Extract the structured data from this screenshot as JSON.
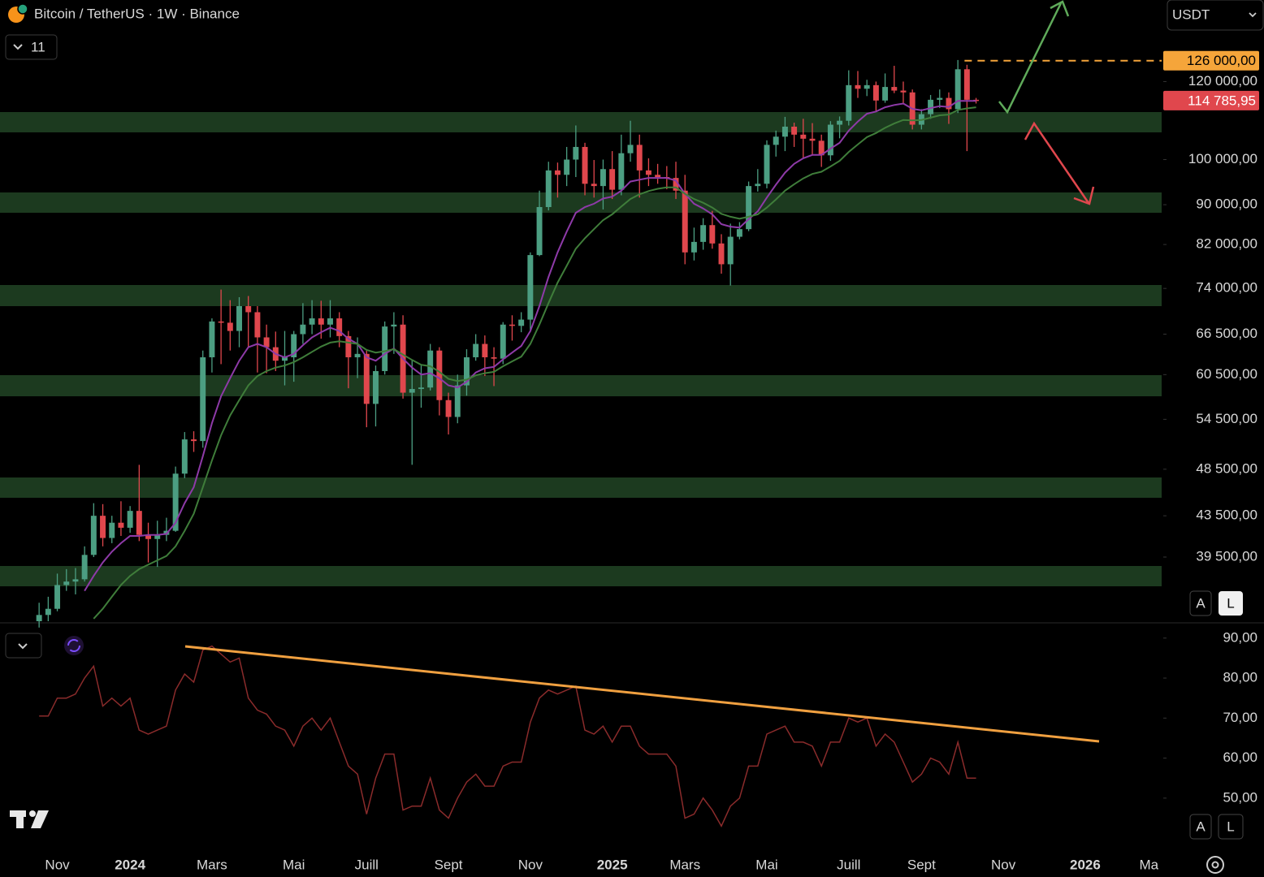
{
  "header": {
    "title": "Bitcoin / TetherUS · 1W · Binance",
    "indicator_count": "11",
    "currency": "USDT",
    "scale_buttons": [
      "A",
      "L"
    ]
  },
  "chart_data": [
    {
      "type": "candlestick",
      "log_scale": true,
      "up_color": "#4c9e82",
      "down_color": "#e0474d",
      "ylim": [
        34000,
        145200
      ],
      "yticks": [
        {
          "value": 120000,
          "label": "120 000,00"
        },
        {
          "value": 100000,
          "label": "100 000,00"
        },
        {
          "value": 90000,
          "label": "90 000,00"
        },
        {
          "value": 82000,
          "label": "82 000,00"
        },
        {
          "value": 74000,
          "label": "74 000,00"
        },
        {
          "value": 66500,
          "label": "66 500,00"
        },
        {
          "value": 60500,
          "label": "60 500,00"
        },
        {
          "value": 54500,
          "label": "54 500,00"
        },
        {
          "value": 48500,
          "label": "48 500,00"
        },
        {
          "value": 43500,
          "label": "43 500,00"
        },
        {
          "value": 39500,
          "label": "39 500,00"
        }
      ],
      "xlim": [
        -4.3,
        123.4
      ],
      "xticks": [
        {
          "value": 2,
          "label": "Nov"
        },
        {
          "value": 10,
          "label": "2024"
        },
        {
          "value": 19,
          "label": "Mars"
        },
        {
          "value": 28,
          "label": "Mai"
        },
        {
          "value": 36,
          "label": "Juill"
        },
        {
          "value": 45,
          "label": "Sept"
        },
        {
          "value": 54,
          "label": "Nov"
        },
        {
          "value": 63,
          "label": "2025"
        },
        {
          "value": 71,
          "label": "Mars"
        },
        {
          "value": 80,
          "label": "Mai"
        },
        {
          "value": 89,
          "label": "Juill"
        },
        {
          "value": 97,
          "label": "Sept"
        },
        {
          "value": 106,
          "label": "Nov"
        },
        {
          "value": 115,
          "label": "2026"
        },
        {
          "value": 122,
          "label": "Ma"
        }
      ],
      "price_lines": [
        {
          "value": 126000,
          "label": "126 000,00",
          "color": "#f5a53a",
          "dashed": true
        },
        {
          "value": 114785.95,
          "label": "114 785,95",
          "color": "#e0474d",
          "dashed": false
        }
      ],
      "open": [
        34000,
        34500,
        35000,
        37000,
        37300,
        37500,
        39700,
        43500,
        41300,
        42800,
        42300,
        44000,
        41600,
        41200,
        41600,
        42000,
        48000,
        52000,
        51800,
        63000,
        68500,
        68300,
        67000,
        71000,
        70000,
        66000,
        64500,
        62500,
        63000,
        66500,
        68000,
        69000,
        68000,
        69000,
        66200,
        63000,
        63500,
        56500,
        61000,
        67700,
        68000,
        58000,
        58500,
        58700,
        64000,
        57000,
        54800,
        59000,
        63000,
        65000,
        63000,
        62800,
        68000,
        67800,
        68800,
        80000,
        89500,
        97500,
        96500,
        100000,
        103000,
        94500,
        94000,
        97800,
        93200,
        101500,
        103500,
        97500,
        96500,
        96000,
        95800,
        93000,
        80500,
        82500,
        85800,
        82200,
        78300,
        83500,
        85000,
        94000,
        94500,
        103500,
        105500,
        108000,
        106000,
        105000,
        104500,
        101000,
        108500,
        109500,
        119000,
        118000,
        119000,
        114800,
        118500,
        117500,
        117000,
        108500,
        111200,
        115000,
        115500,
        112500,
        123500,
        115000
      ],
      "high": [
        35500,
        36000,
        38000,
        38400,
        38500,
        40500,
        44800,
        44700,
        43500,
        45000,
        44500,
        49000,
        42800,
        43000,
        43300,
        48800,
        52900,
        53000,
        64000,
        69000,
        73800,
        72000,
        72500,
        72700,
        71000,
        68000,
        66900,
        67000,
        67000,
        71500,
        72000,
        71900,
        72000,
        70000,
        67000,
        66000,
        64000,
        61800,
        68500,
        70000,
        69500,
        62700,
        61800,
        65000,
        64500,
        58000,
        60500,
        64200,
        66500,
        66300,
        64500,
        68400,
        69500,
        70000,
        80500,
        93000,
        99500,
        99300,
        103000,
        108300,
        104000,
        99900,
        100000,
        102000,
        106000,
        109500,
        106000,
        100300,
        99000,
        98500,
        99500,
        96500,
        85300,
        87200,
        88700,
        84000,
        86100,
        86400,
        95000,
        97800,
        104600,
        107000,
        110500,
        109000,
        110000,
        108900,
        106000,
        109400,
        110600,
        123200,
        123000,
        120500,
        120000,
        122300,
        124500,
        120000,
        117800,
        112500,
        116300,
        117800,
        117000,
        126200,
        124800,
        115500
      ],
      "low": [
        33500,
        34000,
        34800,
        36500,
        36200,
        37300,
        39500,
        40500,
        40800,
        41500,
        41800,
        41000,
        39000,
        38600,
        41000,
        41900,
        47500,
        50500,
        51000,
        60800,
        62000,
        64000,
        64500,
        64500,
        60800,
        60700,
        61000,
        59000,
        59500,
        65000,
        66500,
        65800,
        66000,
        64500,
        58600,
        60000,
        53500,
        53600,
        60500,
        63500,
        57200,
        49000,
        56000,
        58300,
        55000,
        52600,
        54000,
        57600,
        62500,
        60300,
        58900,
        62000,
        65500,
        66800,
        66800,
        79800,
        88800,
        91500,
        94000,
        96000,
        92000,
        91500,
        89000,
        91200,
        92000,
        99500,
        91500,
        94000,
        94500,
        93300,
        91200,
        78300,
        79000,
        81000,
        81200,
        76600,
        74500,
        83000,
        84600,
        92800,
        93500,
        100700,
        102000,
        103000,
        100400,
        101000,
        98300,
        99700,
        105100,
        108300,
        115500,
        116000,
        112000,
        114200,
        116800,
        114000,
        107300,
        107300,
        110000,
        112800,
        108700,
        111500,
        102000,
        114000
      ],
      "close": [
        34500,
        35000,
        37000,
        37300,
        37500,
        39700,
        43500,
        41300,
        42800,
        42300,
        44000,
        41600,
        41200,
        41600,
        42000,
        48000,
        52000,
        51800,
        63000,
        68500,
        68300,
        67000,
        71000,
        70000,
        66000,
        64500,
        62500,
        63000,
        66500,
        68000,
        69000,
        68000,
        69000,
        66200,
        63000,
        63500,
        56500,
        61000,
        67700,
        68000,
        58000,
        58500,
        58700,
        64000,
        57000,
        54800,
        59000,
        63000,
        65000,
        63000,
        62800,
        68000,
        67800,
        68800,
        80000,
        89500,
        97500,
        96500,
        100000,
        103000,
        94500,
        94000,
        97800,
        93200,
        101500,
        103500,
        97500,
        96500,
        96000,
        95800,
        93000,
        80500,
        82500,
        85800,
        82200,
        78300,
        83500,
        85000,
        94000,
        94500,
        103500,
        105500,
        108000,
        106000,
        105000,
        104500,
        101000,
        108500,
        109500,
        119000,
        118000,
        119000,
        114800,
        118500,
        117500,
        117000,
        108500,
        111200,
        115000,
        115500,
        112500,
        123500,
        115000,
        114785.95
      ],
      "series": [
        {
          "color": "#8e3aa8",
          "values": [
            null,
            null,
            null,
            null,
            null,
            36500,
            37800,
            39000,
            40000,
            40800,
            41500,
            41500,
            41600,
            41600,
            41700,
            42800,
            44800,
            46500,
            50000,
            54000,
            57500,
            60000,
            62500,
            64500,
            65000,
            64500,
            63500,
            63000,
            63500,
            64800,
            66000,
            66800,
            67500,
            67000,
            65800,
            65000,
            63000,
            62500,
            63500,
            64300,
            62800,
            61500,
            60500,
            60700,
            60000,
            59000,
            58700,
            59500,
            60800,
            61400,
            61600,
            62700,
            63700,
            64700,
            67000,
            71000,
            76000,
            80500,
            84500,
            88300,
            89500,
            90200,
            91300,
            91700,
            93000,
            95000,
            95400,
            95800,
            95800,
            95800,
            95200,
            92300,
            90200,
            89200,
            88000,
            86000,
            85500,
            85300,
            87000,
            88600,
            91500,
            94300,
            97000,
            99000,
            100300,
            101100,
            101100,
            102600,
            104000,
            107000,
            109300,
            111300,
            111900,
            113000,
            113600,
            114000,
            112600,
            112200,
            112800,
            113300,
            113100,
            114700,
            114700,
            114700
          ]
        },
        {
          "color": "#3f7d3a",
          "values": [
            null,
            null,
            null,
            null,
            null,
            null,
            34200,
            35000,
            36000,
            37000,
            37800,
            38400,
            38800,
            39200,
            39600,
            40500,
            42000,
            43700,
            46500,
            49500,
            52500,
            55000,
            57000,
            59000,
            60300,
            61000,
            61500,
            61800,
            62300,
            63000,
            63800,
            64600,
            65200,
            65400,
            65200,
            65000,
            64100,
            63700,
            63900,
            64200,
            63400,
            62600,
            61900,
            61700,
            60900,
            59900,
            59600,
            59800,
            60400,
            60700,
            60900,
            61700,
            62400,
            63100,
            65000,
            68000,
            71500,
            75000,
            78000,
            81200,
            83200,
            85000,
            86800,
            88000,
            89600,
            91200,
            92200,
            92900,
            93400,
            93700,
            93700,
            92300,
            91200,
            90400,
            89400,
            88100,
            87500,
            87100,
            87500,
            88000,
            89400,
            91100,
            93000,
            94400,
            95700,
            96700,
            97200,
            98400,
            99700,
            101800,
            103600,
            105400,
            106400,
            107700,
            108800,
            109700,
            109600,
            109700,
            110300,
            110900,
            111100,
            112300,
            112700,
            113000
          ]
        }
      ]
    },
    {
      "type": "line",
      "ylim": [
        38.4,
        93.2
      ],
      "xlim": [
        -4.3,
        123.4
      ],
      "yticks": [
        {
          "value": 90,
          "label": "90,00"
        },
        {
          "value": 80,
          "label": "80,00"
        },
        {
          "value": 70,
          "label": "70,00"
        },
        {
          "value": 60,
          "label": "60,00"
        },
        {
          "value": 50,
          "label": "50,00"
        }
      ],
      "series": [
        {
          "color": "#8a2b2b",
          "values": [
            70.5,
            70.5,
            75,
            75,
            76,
            80,
            83,
            73,
            75,
            73,
            75,
            67,
            66,
            67,
            68,
            77,
            81,
            79,
            87,
            88,
            86,
            84,
            85,
            75,
            72,
            71,
            68,
            67,
            63,
            68,
            70,
            67,
            70,
            64,
            58,
            56,
            46,
            55,
            61,
            61,
            47,
            48,
            48,
            55,
            47,
            45,
            50,
            54,
            56,
            53,
            53,
            58,
            59,
            59,
            69,
            75,
            77,
            76,
            77,
            78,
            67,
            66,
            68,
            64,
            68,
            68,
            63,
            61,
            61,
            61,
            58,
            45,
            46,
            50,
            47,
            43,
            48,
            50,
            58,
            58,
            66,
            67,
            68,
            64,
            64,
            63,
            58,
            64,
            64,
            70,
            69,
            70,
            63,
            66,
            64,
            59,
            54,
            56,
            60,
            59,
            56,
            64,
            55,
            55
          ]
        }
      ]
    }
  ]
}
